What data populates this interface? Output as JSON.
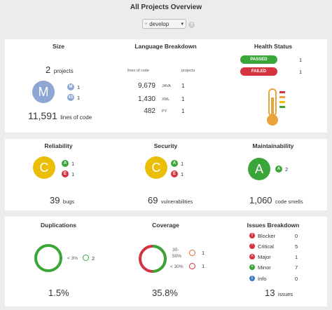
{
  "header": {
    "title": "All Projects Overview",
    "branch": "develop",
    "help_symbol": "?"
  },
  "size": {
    "title": "Size",
    "projects_count": "2",
    "projects_label": "projects",
    "big_letter": "M",
    "breakdown": [
      {
        "letter": "M",
        "count": "1"
      },
      {
        "letter": "XS",
        "count": "1"
      }
    ],
    "lines_value": "11,591",
    "lines_label": "lines of code"
  },
  "language": {
    "title": "Language Breakdown",
    "col_lines": "lines of code",
    "col_projects": "projects",
    "rows": [
      {
        "lines": "9,679",
        "lang": "JAVA",
        "projects": "1"
      },
      {
        "lines": "1,430",
        "lang": "XML",
        "projects": "1"
      },
      {
        "lines": "482",
        "lang": "PY",
        "projects": "1"
      }
    ]
  },
  "health": {
    "title": "Health Status",
    "passed_label": "PASSED",
    "passed_count": "1",
    "failed_label": "FAILED",
    "failed_count": "1",
    "thermometer_icon": "thermometer-icon"
  },
  "reliability": {
    "title": "Reliability",
    "grade": "C",
    "breakdown": [
      {
        "letter": "A",
        "count": "1"
      },
      {
        "letter": "E",
        "count": "1"
      }
    ],
    "value": "39",
    "label": "bugs"
  },
  "security": {
    "title": "Security",
    "grade": "C",
    "breakdown": [
      {
        "letter": "A",
        "count": "1"
      },
      {
        "letter": "E",
        "count": "1"
      }
    ],
    "value": "69",
    "label": "vulnerabilities"
  },
  "maintainability": {
    "title": "Maintainability",
    "grade": "A",
    "breakdown": [
      {
        "letter": "A",
        "count": "2"
      }
    ],
    "value": "1,060",
    "label": "code smells"
  },
  "duplications": {
    "title": "Duplications",
    "bucket_label": "< 3%",
    "bucket_count": "2",
    "value": "1.5%"
  },
  "coverage": {
    "title": "Coverage",
    "bucket1_label_a": "30-",
    "bucket1_label_b": "50%",
    "bucket1_count": "1",
    "bucket2_label": "< 30%",
    "bucket2_count": "1",
    "value": "35.8%",
    "green_fraction": 0.5
  },
  "issues": {
    "title": "Issues Breakdown",
    "rows": [
      {
        "label": "Blocker",
        "count": "0",
        "icon": "blocker-icon"
      },
      {
        "label": "Critical",
        "count": "5",
        "icon": "critical-icon"
      },
      {
        "label": "Major",
        "count": "1",
        "icon": "major-icon"
      },
      {
        "label": "Minor",
        "count": "7",
        "icon": "minor-icon"
      },
      {
        "label": "Info",
        "count": "0",
        "icon": "info-icon"
      }
    ],
    "total_value": "13",
    "total_label": "issues"
  },
  "colors": {
    "green": "#3aa639",
    "red": "#d4333f",
    "yellow": "#eabe06",
    "gray_blue": "#8ea6d3",
    "gray": "#666666"
  }
}
